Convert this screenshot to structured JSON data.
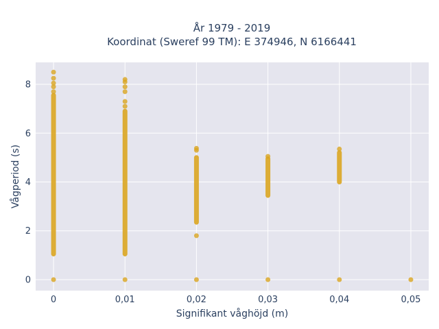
{
  "chart_data": {
    "type": "scatter",
    "title": [
      "År 1979 - 2019",
      "Koordinat (Sweref 99 TM): E 374946, N 6166441"
    ],
    "xlabel": "Signifikant våghöjd (m)",
    "ylabel": "Vågperiod (s)",
    "xlim": [
      -0.0025,
      0.0525
    ],
    "ylim": [
      -0.45,
      8.9
    ],
    "x_ticks": [
      0,
      0.01,
      0.02,
      0.03,
      0.04,
      0.05
    ],
    "x_tick_labels": [
      "0",
      "0,01",
      "0,02",
      "0,03",
      "0,04",
      "0,05"
    ],
    "y_ticks": [
      0,
      2,
      4,
      6,
      8
    ],
    "y_tick_labels": [
      "0",
      "2",
      "4",
      "6",
      "8"
    ],
    "grid": true,
    "marker_color": "#DAA520",
    "plot_background": "#E5E5EE",
    "series": [
      {
        "values": [
          {
            "x": 0,
            "y_range": [
              1.05,
              7.55
            ]
          },
          {
            "x": 0,
            "y": 7.7
          },
          {
            "x": 0,
            "y": 7.9
          },
          {
            "x": 0,
            "y": 8.05
          },
          {
            "x": 0,
            "y": 8.25
          },
          {
            "x": 0,
            "y": 8.5
          },
          {
            "x": 0,
            "y": 0
          },
          {
            "x": 0.01,
            "y_range": [
              1.05,
              6.9
            ]
          },
          {
            "x": 0.01,
            "y": 7.1
          },
          {
            "x": 0.01,
            "y": 7.3
          },
          {
            "x": 0.01,
            "y": 7.7
          },
          {
            "x": 0.01,
            "y": 7.9
          },
          {
            "x": 0.01,
            "y": 8.1
          },
          {
            "x": 0.01,
            "y": 8.2
          },
          {
            "x": 0.01,
            "y": 0
          },
          {
            "x": 0.02,
            "y_range": [
              2.35,
              5.0
            ]
          },
          {
            "x": 0.02,
            "y": 5.3
          },
          {
            "x": 0.02,
            "y": 5.38
          },
          {
            "x": 0.02,
            "y": 1.8
          },
          {
            "x": 0.02,
            "y": 0
          },
          {
            "x": 0.03,
            "y_range": [
              3.45,
              4.95
            ]
          },
          {
            "x": 0.03,
            "y": 5.05
          },
          {
            "x": 0.03,
            "y": 0
          },
          {
            "x": 0.04,
            "y_range": [
              4.0,
              5.2
            ]
          },
          {
            "x": 0.04,
            "y": 5.35
          },
          {
            "x": 0.04,
            "y": 0
          },
          {
            "x": 0.05,
            "y": 0
          }
        ]
      }
    ]
  }
}
